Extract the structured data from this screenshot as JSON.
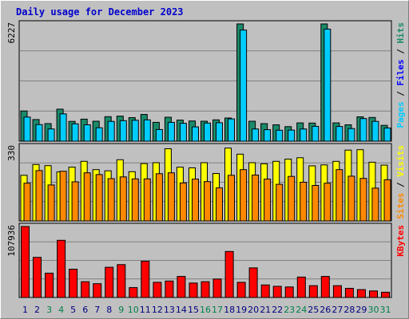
{
  "title": "Daily usage for December 2023",
  "colors": {
    "background": "#c0c0c0",
    "gridline": "#808080",
    "hits": "#1a8a6a",
    "files": "#00ccff",
    "visits": "#ffff00",
    "sites": "#ff8800",
    "kbytes": "#ff0000",
    "title": "#0000cc",
    "weekday_label": "#000080",
    "weekend_label": "#00804a"
  },
  "chart_data": [
    {
      "type": "bar",
      "name": "hits-files",
      "categories": [
        "1",
        "2",
        "3",
        "4",
        "5",
        "6",
        "7",
        "8",
        "9",
        "10",
        "11",
        "12",
        "13",
        "14",
        "15",
        "16",
        "17",
        "18",
        "19",
        "20",
        "21",
        "22",
        "23",
        "24",
        "25",
        "26",
        "27",
        "28",
        "29",
        "30",
        "31"
      ],
      "ymax_label": "6227",
      "ylim": [
        0,
        6227
      ],
      "right_label_parts": [
        {
          "text": "Pages",
          "color": "#00ccff"
        },
        {
          "text": " / ",
          "color": "#000000"
        },
        {
          "text": "Files",
          "color": "#0000ff"
        },
        {
          "text": " / ",
          "color": "#000000"
        },
        {
          "text": "Hits",
          "color": "#1a8a6a"
        }
      ],
      "series": [
        {
          "name": "Hits",
          "values": [
            1600,
            1150,
            930,
            1700,
            1050,
            1170,
            1060,
            1300,
            1330,
            1250,
            1420,
            1000,
            1270,
            1120,
            1070,
            1060,
            1130,
            1230,
            6227,
            1060,
            930,
            870,
            770,
            970,
            960,
            6227,
            970,
            870,
            1290,
            1260,
            840
          ]
        },
        {
          "name": "Files",
          "values": [
            1280,
            880,
            650,
            1450,
            920,
            870,
            710,
            1050,
            1090,
            1110,
            1130,
            620,
            1000,
            950,
            760,
            960,
            980,
            1180,
            5900,
            650,
            610,
            580,
            590,
            650,
            790,
            5950,
            780,
            670,
            1200,
            1050,
            700
          ]
        }
      ]
    },
    {
      "type": "bar",
      "name": "visits-sites",
      "categories": [
        "1",
        "2",
        "3",
        "4",
        "5",
        "6",
        "7",
        "8",
        "9",
        "10",
        "11",
        "12",
        "13",
        "14",
        "15",
        "16",
        "17",
        "18",
        "19",
        "20",
        "21",
        "22",
        "23",
        "24",
        "25",
        "26",
        "27",
        "28",
        "29",
        "30",
        "31"
      ],
      "ymax_label": "330",
      "ylim": [
        0,
        330
      ],
      "right_label_parts": [
        {
          "text": "Sites",
          "color": "#ff8800"
        },
        {
          "text": " / ",
          "color": "#000000"
        },
        {
          "text": "Visits",
          "color": "#ffff00"
        }
      ],
      "series": [
        {
          "name": "Visits",
          "values": [
            203,
            251,
            246,
            218,
            239,
            265,
            228,
            223,
            272,
            219,
            255,
            259,
            321,
            239,
            236,
            259,
            211,
            324,
            297,
            259,
            254,
            265,
            275,
            281,
            245,
            249,
            265,
            315,
            317,
            261,
            248
          ]
        },
        {
          "name": "Sites",
          "values": [
            168,
            224,
            160,
            221,
            174,
            214,
            206,
            188,
            196,
            187,
            187,
            210,
            214,
            169,
            186,
            175,
            147,
            203,
            228,
            204,
            186,
            163,
            198,
            172,
            158,
            168,
            228,
            199,
            189,
            146,
            183
          ]
        }
      ]
    },
    {
      "type": "bar",
      "name": "kbytes",
      "categories": [
        "1",
        "2",
        "3",
        "4",
        "5",
        "6",
        "7",
        "8",
        "9",
        "10",
        "11",
        "12",
        "13",
        "14",
        "15",
        "16",
        "17",
        "18",
        "19",
        "20",
        "21",
        "22",
        "23",
        "24",
        "25",
        "26",
        "27",
        "28",
        "29",
        "30",
        "31"
      ],
      "ymax_label": "107936",
      "ylim": [
        0,
        107936
      ],
      "right_label_parts": [
        {
          "text": "KBytes",
          "color": "#ff0000"
        }
      ],
      "series": [
        {
          "name": "KBytes",
          "values": [
            107936,
            61000,
            37000,
            87000,
            43000,
            24000,
            21000,
            46000,
            50000,
            15000,
            55000,
            23000,
            25000,
            32000,
            22000,
            24000,
            28000,
            70000,
            23000,
            45000,
            19000,
            17000,
            16000,
            31000,
            18000,
            32000,
            18000,
            14000,
            12000,
            10000,
            8000
          ]
        }
      ]
    }
  ],
  "x_label_colors": [
    "wd",
    "wd",
    "we",
    "we",
    "wd",
    "wd",
    "wd",
    "wd",
    "we",
    "we",
    "wd",
    "wd",
    "wd",
    "wd",
    "wd",
    "we",
    "we",
    "wd",
    "wd",
    "wd",
    "wd",
    "wd",
    "we",
    "we",
    "wd",
    "wd",
    "wd",
    "wd",
    "wd",
    "we",
    "we"
  ]
}
